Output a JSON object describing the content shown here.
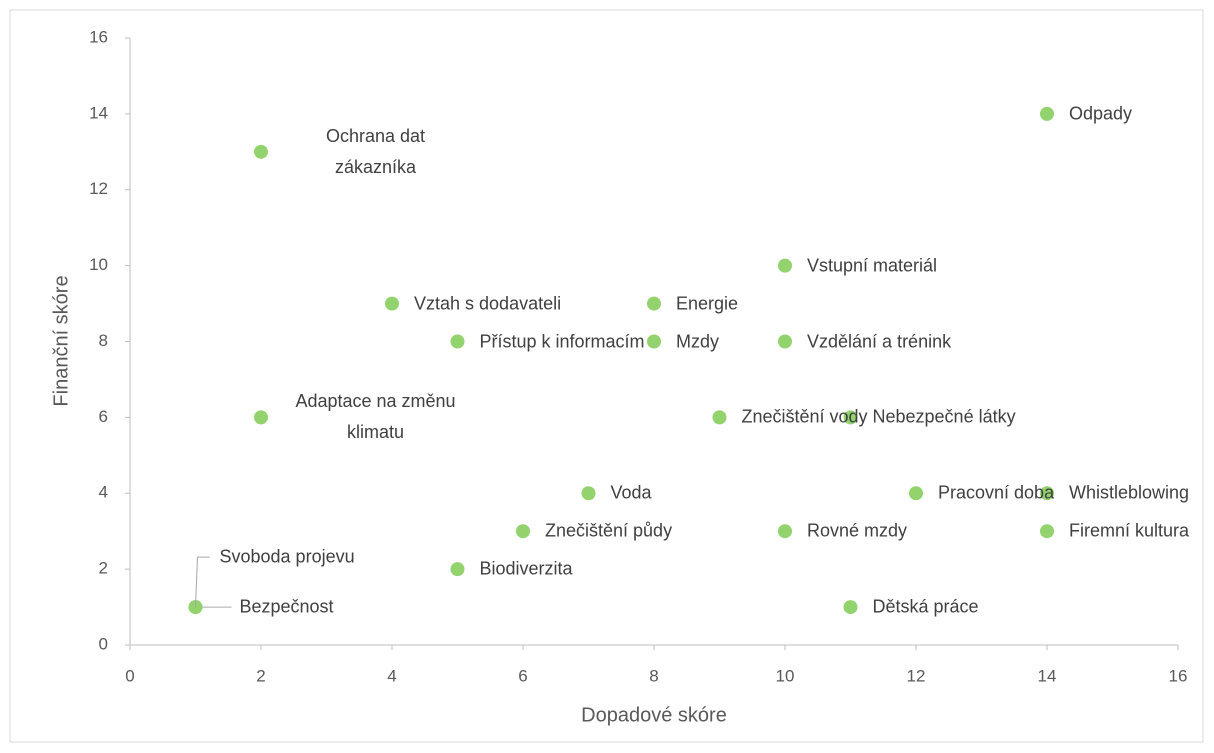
{
  "chart_data": {
    "type": "scatter",
    "xlabel": "Dopadové skóre",
    "ylabel": "Finanční skóre",
    "color": "#92d36e",
    "xlim": [
      0,
      16
    ],
    "xticks": [
      0,
      2,
      4,
      6,
      8,
      10,
      12,
      14,
      16
    ],
    "ylim": [
      0,
      16
    ],
    "yticks": [
      0,
      2,
      4,
      6,
      8,
      10,
      12,
      14,
      16
    ],
    "labels": [
      "Odpady",
      "Ochrana dat zákazníka",
      "Vstupní materiál",
      "Vztah s dodavateli",
      "Energie",
      "Přístup k informacím",
      "Mzdy",
      "Vzdělání a trénink",
      "Adaptace na změnu klimatu",
      "Znečištění vody",
      "Nebezpečné látky",
      "Voda",
      "Pracovní doba",
      "Whistleblowing",
      "Znečištění půdy",
      "Rovné mzdy",
      "Firemní kultura",
      "Biodiverzita",
      "Bezpečnost",
      "Svoboda projevu",
      "Dětská práce"
    ],
    "x": [
      14,
      2,
      10,
      4,
      8,
      5,
      8,
      10,
      2,
      9,
      11,
      7,
      12,
      14,
      6,
      10,
      14,
      5,
      1,
      1,
      11
    ],
    "y": [
      14,
      13,
      10,
      9,
      9,
      8,
      8,
      8,
      6,
      6,
      6,
      4,
      4,
      4,
      3,
      3,
      3,
      2,
      1,
      1,
      1
    ]
  }
}
